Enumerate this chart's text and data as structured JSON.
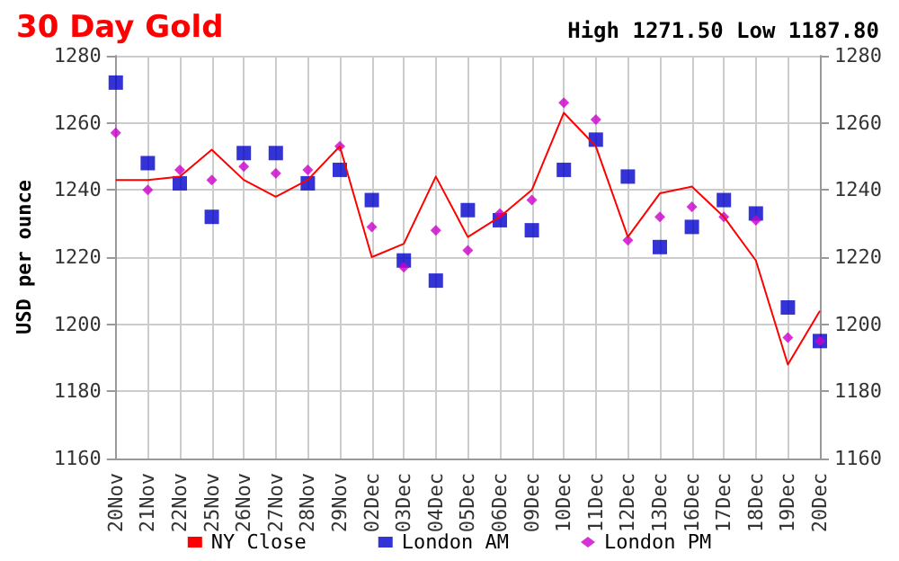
{
  "chart_data": {
    "type": "line",
    "title": "30 Day Gold",
    "subtitle": "High 1271.50 Low 1187.80",
    "ylabel": "USD per ounce",
    "categories": [
      "20Nov",
      "21Nov",
      "22Nov",
      "25Nov",
      "26Nov",
      "27Nov",
      "28Nov",
      "29Nov",
      "02Dec",
      "03Dec",
      "04Dec",
      "05Dec",
      "06Dec",
      "09Dec",
      "10Dec",
      "11Dec",
      "12Dec",
      "13Dec",
      "16Dec",
      "17Dec",
      "18Dec",
      "19Dec",
      "20Dec"
    ],
    "series": [
      {
        "name": "NY Close",
        "marker": "none",
        "color": "#ff0000",
        "values": [
          1243,
          1243,
          1244,
          1252,
          1243,
          1238,
          1243,
          1253,
          1220,
          1224,
          1244,
          1226,
          1232,
          1240,
          1263,
          1253,
          1226,
          1239,
          1241,
          1232,
          1219,
          1188,
          1204
        ]
      },
      {
        "name": "London AM",
        "type": "scatter",
        "marker": "square",
        "color": "#0000cc",
        "values": [
          1272,
          1248,
          1242,
          1232,
          1251,
          1251,
          1242,
          1246,
          1237,
          1219,
          1213,
          1234,
          1231,
          1228,
          1246,
          1255,
          1244,
          1223,
          1229,
          1237,
          1233,
          1205,
          1195
        ]
      },
      {
        "name": "London PM",
        "type": "scatter",
        "marker": "diamond",
        "color": "#cc00cc",
        "values": [
          1257,
          1240,
          1246,
          1243,
          1247,
          1245,
          1246,
          1253,
          1229,
          1217,
          1228,
          1222,
          1233,
          1237,
          1266,
          1261,
          1225,
          1232,
          1235,
          1232,
          1231,
          1196,
          1195
        ]
      }
    ],
    "ylim": [
      1160,
      1280
    ],
    "yticks": [
      1160,
      1180,
      1200,
      1220,
      1240,
      1260,
      1280
    ],
    "y2lim": [
      1160,
      1280
    ],
    "y2ticks": [
      1160,
      1180,
      1200,
      1220,
      1240,
      1260,
      1280
    ],
    "grid": true,
    "legend": "bottom"
  }
}
